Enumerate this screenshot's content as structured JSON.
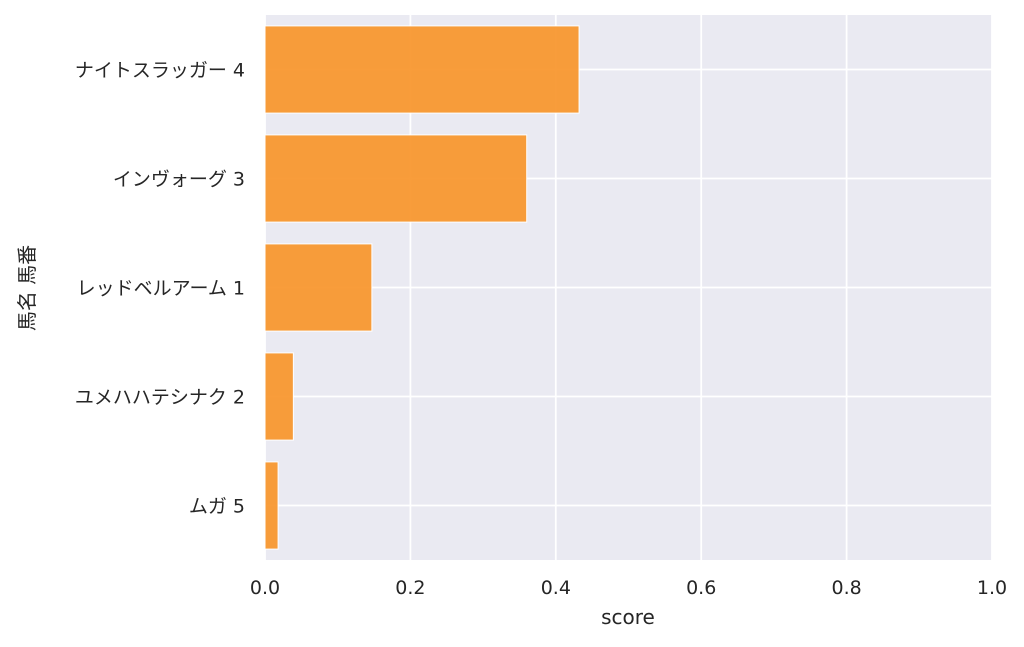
{
  "chart_data": {
    "type": "bar",
    "orientation": "horizontal",
    "categories": [
      "ナイトスラッガー 4",
      "インヴォーグ 3",
      "レッドベルアーム 1",
      "ユメハハテシナク 2",
      "ムガ 5"
    ],
    "values": [
      0.432,
      0.36,
      0.147,
      0.039,
      0.018
    ],
    "xlabel": "score",
    "ylabel": "馬名 馬番",
    "xlim": [
      0,
      1.0
    ],
    "xticks": [
      0.0,
      0.2,
      0.4,
      0.6,
      0.8,
      1.0
    ],
    "xtick_labels": [
      "0.0",
      "0.2",
      "0.4",
      "0.6",
      "0.8",
      "1.0"
    ],
    "grid": true,
    "legend": "none",
    "colors": {
      "bar": "#f7952a",
      "plot_background": "#eaeaf2",
      "grid": "#ffffff",
      "text": "#262626"
    }
  }
}
